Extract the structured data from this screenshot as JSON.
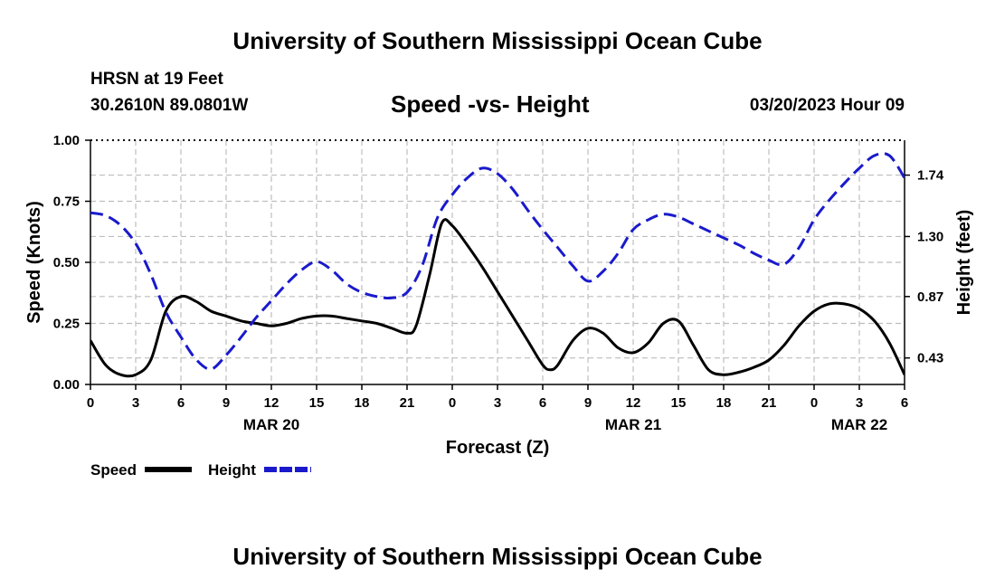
{
  "header": {
    "title": "University of Southern Mississippi Ocean Cube",
    "station": "HRSN at 19 Feet",
    "coords": "30.2610N  89.0801W",
    "chart_title": "Speed -vs- Height",
    "datetime": "03/20/2023 Hour 09"
  },
  "footer": {
    "title": "University of Southern Mississippi Ocean Cube"
  },
  "chart_data": {
    "type": "line",
    "title": "Speed -vs- Height",
    "xlabel": "Forecast (Z)",
    "ylabel": "Speed (Knots)",
    "y2label": "Height (feet)",
    "x_range": [
      0,
      54
    ],
    "ylim": [
      0,
      1.0
    ],
    "y2lim": [
      0.24,
      1.99
    ],
    "x_ticks": [
      0,
      3,
      6,
      9,
      12,
      15,
      18,
      21,
      24,
      27,
      30,
      33,
      36,
      39,
      42,
      45,
      48,
      51,
      54
    ],
    "x_tick_labels": [
      "0",
      "3",
      "6",
      "9",
      "12",
      "15",
      "18",
      "21",
      "0",
      "3",
      "6",
      "9",
      "12",
      "15",
      "18",
      "21",
      "0",
      "3",
      "6"
    ],
    "date_labels": [
      {
        "x": 12,
        "label": "MAR 20"
      },
      {
        "x": 36,
        "label": "MAR 21"
      },
      {
        "x": 51,
        "label": "MAR 22"
      }
    ],
    "y_ticks": [
      0.0,
      0.25,
      0.5,
      0.75,
      1.0
    ],
    "y_tick_labels": [
      "0.00",
      "0.25",
      "0.50",
      "0.75",
      "1.00"
    ],
    "y2_ticks": [
      0.43,
      0.87,
      1.3,
      1.74
    ],
    "y2_tick_labels": [
      "0.43",
      "0.87",
      "1.30",
      "1.74"
    ],
    "grid": true,
    "legend": [
      {
        "label": "Speed",
        "color": "#000000",
        "style": "solid"
      },
      {
        "label": "Height",
        "color": "#1a1acc",
        "style": "dashed"
      }
    ],
    "series": [
      {
        "name": "Speed",
        "axis": "left",
        "color": "#000000",
        "x": [
          0,
          1,
          2,
          3,
          4,
          5,
          6,
          7,
          8,
          9,
          10,
          11,
          12,
          13,
          14,
          15,
          16,
          17,
          18,
          19,
          20,
          21,
          21.6,
          22.5,
          23.3,
          24,
          25,
          26,
          27,
          28,
          29,
          30,
          30.5,
          31,
          32,
          33,
          34,
          35,
          36,
          37,
          38,
          39,
          40,
          41,
          42,
          43,
          44,
          45,
          46,
          47,
          48,
          49,
          50,
          51,
          52,
          53,
          54
        ],
        "values": [
          0.18,
          0.08,
          0.04,
          0.04,
          0.1,
          0.3,
          0.36,
          0.34,
          0.3,
          0.28,
          0.26,
          0.25,
          0.24,
          0.25,
          0.27,
          0.28,
          0.28,
          0.27,
          0.26,
          0.25,
          0.23,
          0.21,
          0.24,
          0.45,
          0.66,
          0.65,
          0.57,
          0.48,
          0.38,
          0.28,
          0.18,
          0.08,
          0.06,
          0.08,
          0.18,
          0.23,
          0.21,
          0.15,
          0.13,
          0.17,
          0.25,
          0.26,
          0.16,
          0.06,
          0.04,
          0.05,
          0.07,
          0.1,
          0.16,
          0.24,
          0.3,
          0.33,
          0.33,
          0.31,
          0.26,
          0.17,
          0.04
        ]
      },
      {
        "name": "Height",
        "axis": "right",
        "color": "#1a1acc",
        "x": [
          0,
          1,
          2,
          3,
          4,
          5,
          6,
          7,
          8,
          9,
          10,
          11,
          12,
          13,
          14,
          15,
          16,
          17,
          18,
          19,
          20,
          21,
          22,
          23,
          24,
          25,
          26,
          27,
          28,
          29,
          30,
          31,
          32,
          33,
          34,
          35,
          36,
          37,
          38,
          39,
          40,
          41,
          42,
          43,
          44,
          45,
          46,
          47,
          48,
          49,
          50,
          51,
          52,
          53,
          54
        ],
        "values": [
          1.47,
          1.45,
          1.38,
          1.25,
          1.03,
          0.76,
          0.58,
          0.42,
          0.35,
          0.45,
          0.58,
          0.72,
          0.84,
          0.96,
          1.06,
          1.12,
          1.06,
          0.96,
          0.9,
          0.87,
          0.86,
          0.9,
          1.09,
          1.43,
          1.6,
          1.72,
          1.79,
          1.75,
          1.64,
          1.49,
          1.35,
          1.22,
          1.09,
          0.98,
          1.05,
          1.18,
          1.35,
          1.42,
          1.46,
          1.44,
          1.39,
          1.34,
          1.29,
          1.24,
          1.18,
          1.13,
          1.1,
          1.22,
          1.42,
          1.56,
          1.68,
          1.79,
          1.88,
          1.88,
          1.72
        ]
      }
    ]
  }
}
